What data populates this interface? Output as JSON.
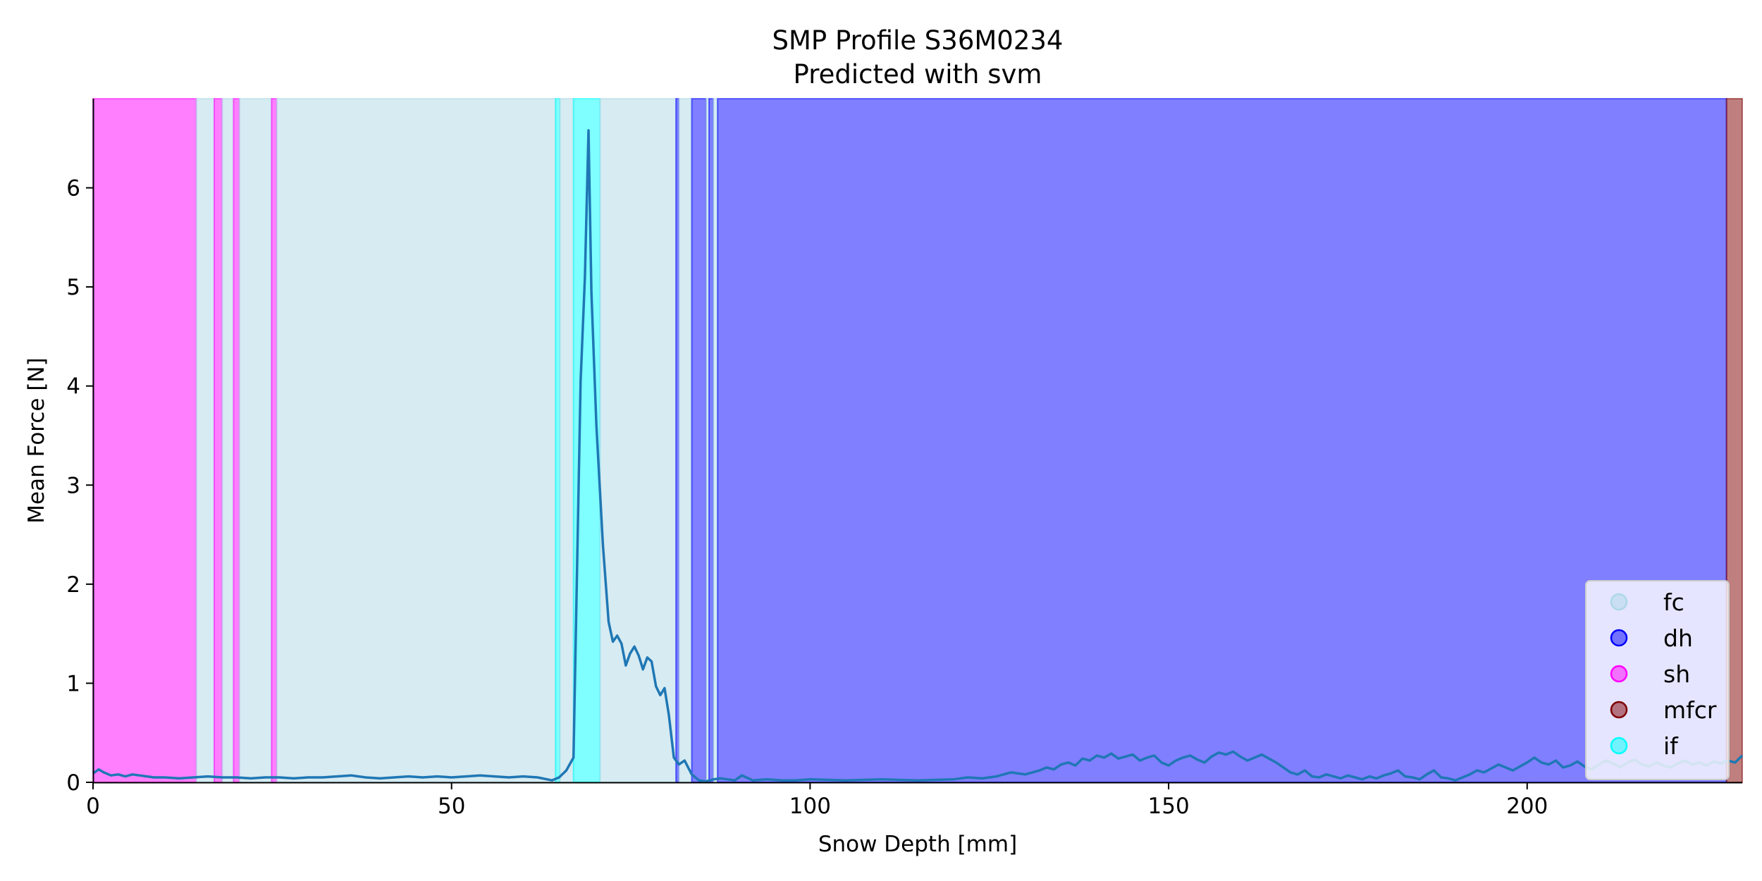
{
  "chart_data": {
    "type": "line",
    "title": "SMP Profile S36M0234",
    "subtitle": "Predicted with svm",
    "xlabel": "Snow Depth [mm]",
    "ylabel": "Mean Force [N]",
    "xlim": [
      0,
      230
    ],
    "ylim": [
      0,
      6.9
    ],
    "xticks": [
      0,
      50,
      100,
      150,
      200
    ],
    "yticks": [
      0,
      1,
      2,
      3,
      4,
      5,
      6
    ],
    "grid": false,
    "legend_position": "lower-right",
    "line_color": "#1f77b4",
    "classes": [
      {
        "name": "fc",
        "color": "#add8e6",
        "alpha": 0.5
      },
      {
        "name": "dh",
        "color": "#0000ff",
        "alpha": 0.5
      },
      {
        "name": "sh",
        "color": "#ff00ff",
        "alpha": 0.5
      },
      {
        "name": "mfcr",
        "color": "#800000",
        "alpha": 0.5
      },
      {
        "name": "if",
        "color": "#00ffff",
        "alpha": 0.5
      }
    ],
    "regions": [
      {
        "cls": "sh",
        "x0": 0,
        "x1": 14.4
      },
      {
        "cls": "fc",
        "x0": 14.4,
        "x1": 16.9
      },
      {
        "cls": "sh",
        "x0": 16.9,
        "x1": 18.0
      },
      {
        "cls": "fc",
        "x0": 18.0,
        "x1": 19.6
      },
      {
        "cls": "sh",
        "x0": 19.6,
        "x1": 20.4
      },
      {
        "cls": "fc",
        "x0": 20.4,
        "x1": 24.9
      },
      {
        "cls": "sh",
        "x0": 24.9,
        "x1": 25.6
      },
      {
        "cls": "fc",
        "x0": 25.6,
        "x1": 64.5
      },
      {
        "cls": "if",
        "x0": 64.5,
        "x1": 65.1
      },
      {
        "cls": "fc",
        "x0": 65.1,
        "x1": 67.0
      },
      {
        "cls": "if",
        "x0": 67.0,
        "x1": 70.7
      },
      {
        "cls": "fc",
        "x0": 70.7,
        "x1": 81.3
      },
      {
        "cls": "dh",
        "x0": 81.3,
        "x1": 81.7
      },
      {
        "cls": "fc",
        "x0": 81.7,
        "x1": 83.5
      },
      {
        "cls": "dh",
        "x0": 83.5,
        "x1": 85.5
      },
      {
        "cls": "fc",
        "x0": 85.5,
        "x1": 85.9
      },
      {
        "cls": "dh",
        "x0": 85.9,
        "x1": 86.5
      },
      {
        "cls": "fc",
        "x0": 86.5,
        "x1": 87.1
      },
      {
        "cls": "dh",
        "x0": 87.1,
        "x1": 227.8
      },
      {
        "cls": "mfcr",
        "x0": 227.8,
        "x1": 230
      }
    ],
    "series": [
      {
        "x": [
          0,
          0.8,
          1.5,
          2.5,
          3.5,
          4.5,
          5.5,
          6.5,
          7.5,
          8.5,
          10,
          12,
          14,
          16,
          18,
          20,
          22,
          24,
          26,
          28,
          30,
          32,
          34,
          36,
          38,
          40,
          42,
          44,
          46,
          48,
          50,
          52,
          54,
          56,
          58,
          60,
          62,
          64,
          65,
          66,
          67,
          68,
          68.6,
          69.1,
          69.5,
          70.2,
          71.1,
          71.9,
          72.5,
          73.1,
          73.7,
          74.3,
          74.9,
          75.5,
          76.1,
          76.7,
          77.3,
          77.9,
          78.5,
          79.1,
          79.7,
          80.3,
          81,
          81.7,
          82.5,
          83.5,
          84.5,
          85.5,
          86.5,
          87.5,
          88.5,
          89.5,
          90.5,
          92,
          94,
          96,
          98,
          100,
          105,
          110,
          115,
          120,
          122,
          124,
          126,
          128,
          130,
          132,
          133,
          134,
          135,
          136,
          137,
          138,
          139,
          140,
          141,
          142,
          143,
          144,
          145,
          146,
          147,
          148,
          149,
          150,
          151,
          152,
          153,
          154,
          155,
          156,
          157,
          158,
          159,
          160,
          161,
          162,
          163,
          164,
          165,
          166,
          167,
          168,
          169,
          170,
          171,
          172,
          173,
          174,
          175,
          176,
          177,
          178,
          179,
          180,
          181,
          182,
          183,
          184,
          185,
          186,
          187,
          188,
          189,
          190,
          191,
          192,
          193,
          194,
          195,
          196,
          197,
          198,
          199,
          200,
          201,
          202,
          203,
          204,
          205,
          206,
          207,
          208,
          209,
          210,
          211,
          212,
          213,
          214,
          215,
          216,
          217,
          218,
          219,
          220,
          221,
          222,
          223,
          224,
          225,
          226,
          227,
          228,
          229,
          230
        ],
        "y": [
          0.09,
          0.13,
          0.1,
          0.07,
          0.08,
          0.06,
          0.08,
          0.07,
          0.06,
          0.05,
          0.05,
          0.04,
          0.05,
          0.06,
          0.05,
          0.05,
          0.04,
          0.05,
          0.05,
          0.04,
          0.05,
          0.05,
          0.06,
          0.07,
          0.05,
          0.04,
          0.05,
          0.06,
          0.05,
          0.06,
          0.05,
          0.06,
          0.07,
          0.06,
          0.05,
          0.06,
          0.05,
          0.02,
          0.05,
          0.12,
          0.25,
          4.05,
          5.1,
          6.58,
          4.95,
          3.6,
          2.4,
          1.62,
          1.42,
          1.48,
          1.4,
          1.18,
          1.3,
          1.37,
          1.28,
          1.14,
          1.26,
          1.22,
          0.97,
          0.88,
          0.95,
          0.68,
          0.25,
          0.18,
          0.22,
          0.08,
          0.02,
          0.01,
          0.03,
          0.04,
          0.03,
          0.02,
          0.07,
          0.02,
          0.03,
          0.02,
          0.02,
          0.03,
          0.02,
          0.03,
          0.02,
          0.03,
          0.05,
          0.04,
          0.06,
          0.1,
          0.08,
          0.12,
          0.15,
          0.13,
          0.18,
          0.2,
          0.17,
          0.24,
          0.22,
          0.27,
          0.25,
          0.29,
          0.24,
          0.26,
          0.28,
          0.22,
          0.25,
          0.27,
          0.2,
          0.17,
          0.22,
          0.25,
          0.27,
          0.23,
          0.2,
          0.26,
          0.3,
          0.28,
          0.31,
          0.26,
          0.22,
          0.25,
          0.28,
          0.24,
          0.2,
          0.15,
          0.1,
          0.08,
          0.12,
          0.06,
          0.05,
          0.08,
          0.06,
          0.04,
          0.07,
          0.05,
          0.03,
          0.06,
          0.04,
          0.07,
          0.09,
          0.12,
          0.06,
          0.05,
          0.03,
          0.08,
          0.12,
          0.05,
          0.04,
          0.02,
          0.05,
          0.08,
          0.12,
          0.1,
          0.14,
          0.18,
          0.15,
          0.12,
          0.16,
          0.2,
          0.25,
          0.2,
          0.18,
          0.22,
          0.15,
          0.17,
          0.21,
          0.16,
          0.13,
          0.18,
          0.22,
          0.19,
          0.15,
          0.2,
          0.23,
          0.18,
          0.16,
          0.2,
          0.17,
          0.15,
          0.19,
          0.22,
          0.18,
          0.2,
          0.17,
          0.21,
          0.19,
          0.22,
          0.2,
          0.27
        ]
      }
    ]
  }
}
